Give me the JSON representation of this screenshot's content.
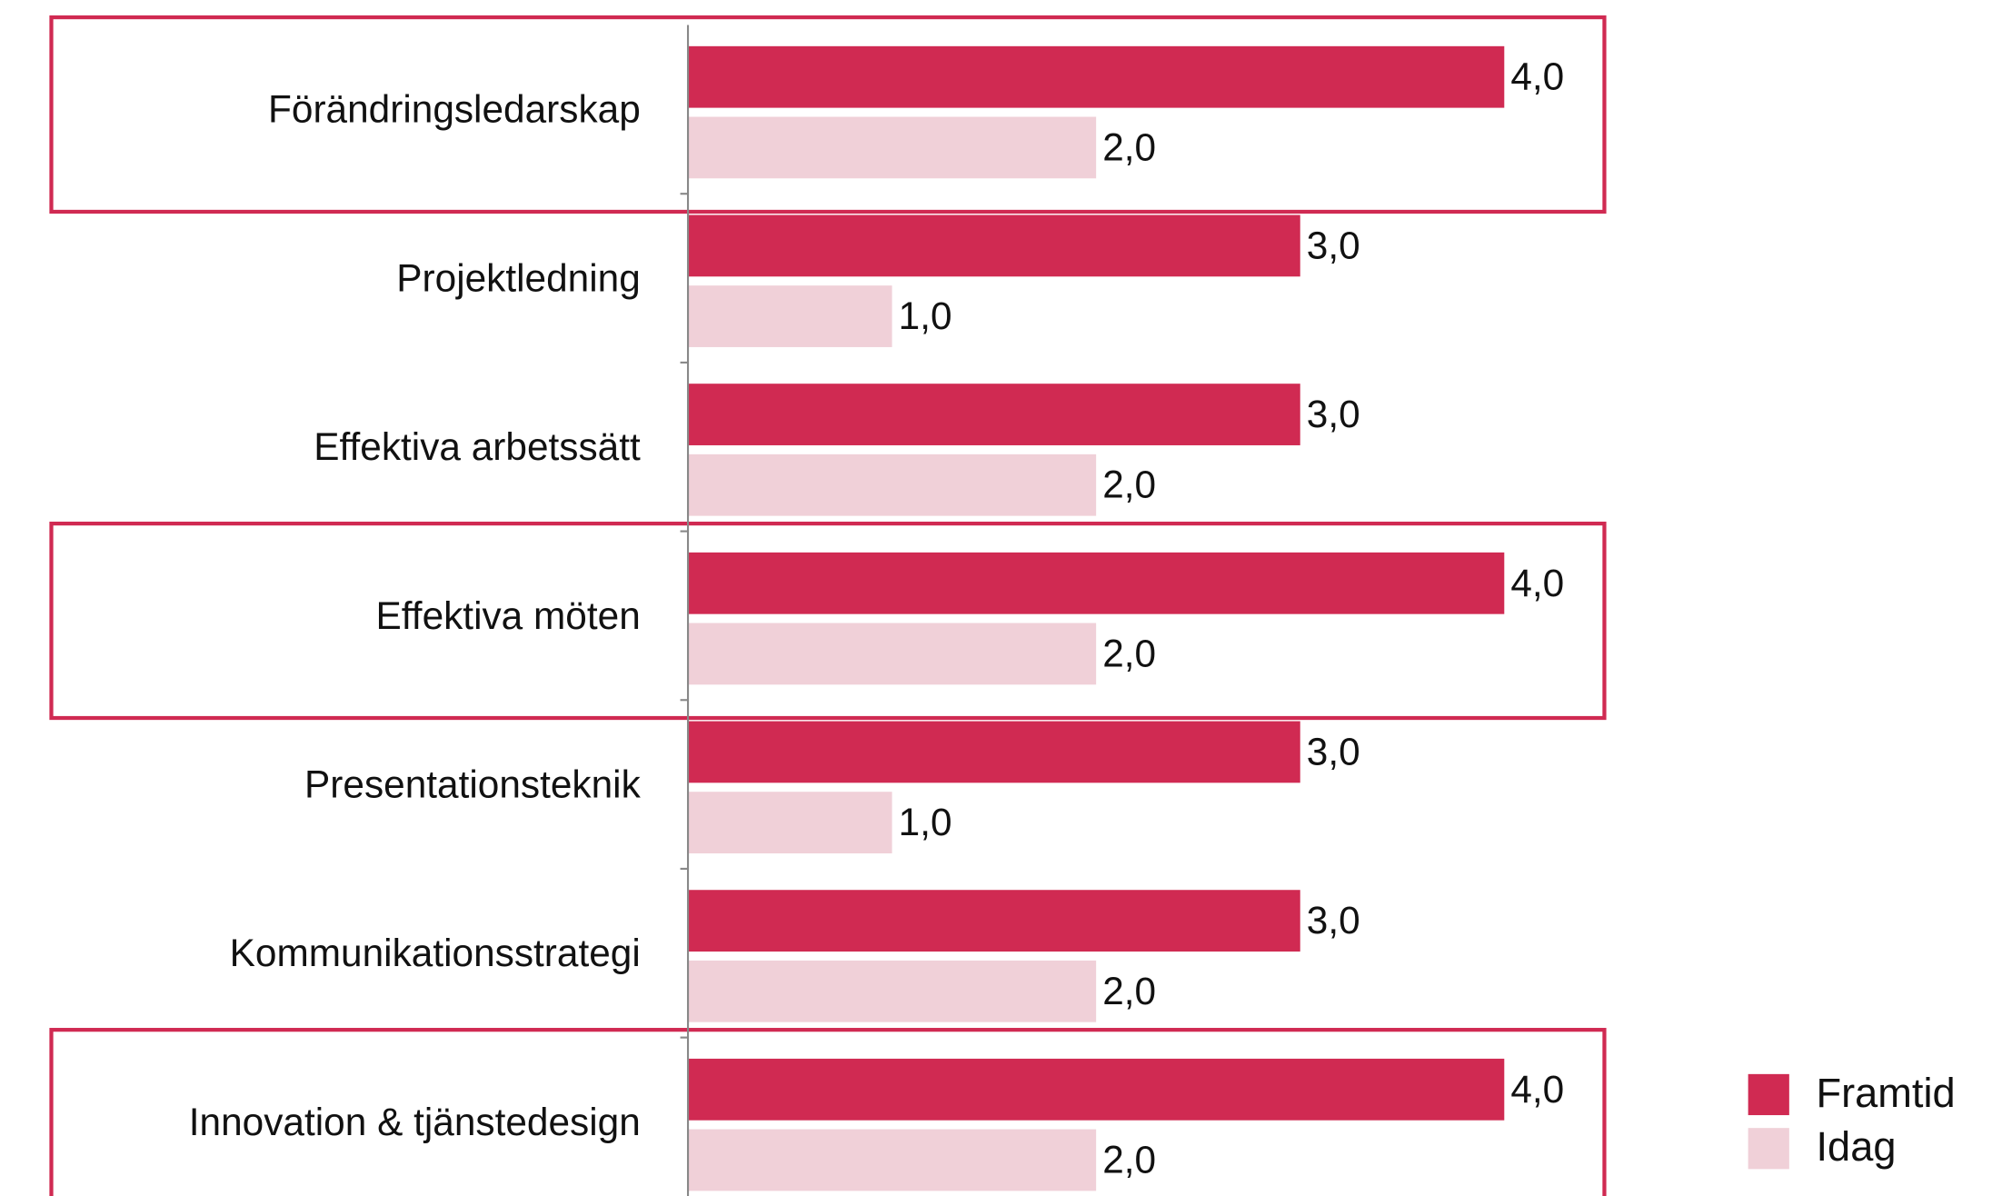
{
  "chart_data": {
    "type": "bar",
    "orientation": "horizontal",
    "categories": [
      "Förändringsledarskap",
      "Projektledning",
      "Effektiva arbetssätt",
      "Effektiva möten",
      "Presentationsteknik",
      "Kommunikationsstrategi",
      "Innovation & tjänstedesign"
    ],
    "series": [
      {
        "name": "Framtid",
        "color": "#d02a52",
        "values": [
          4,
          3,
          3,
          4,
          3,
          3,
          4
        ],
        "value_labels": [
          "4,0",
          "3,0",
          "3,0",
          "4,0",
          "3,0",
          "3,0",
          "4,0"
        ]
      },
      {
        "name": "Idag",
        "color": "#f0d0d8",
        "values": [
          2,
          1,
          2,
          2,
          1,
          2,
          2
        ],
        "value_labels": [
          "2,0",
          "1,0",
          "2,0",
          "2,0",
          "1,0",
          "2,0",
          "2,0"
        ]
      }
    ],
    "xlim": [
      0,
      4
    ],
    "highlighted": [
      true,
      false,
      false,
      true,
      false,
      false,
      true
    ],
    "highlight_color": "#d02a52",
    "legend": "bottom-right"
  }
}
